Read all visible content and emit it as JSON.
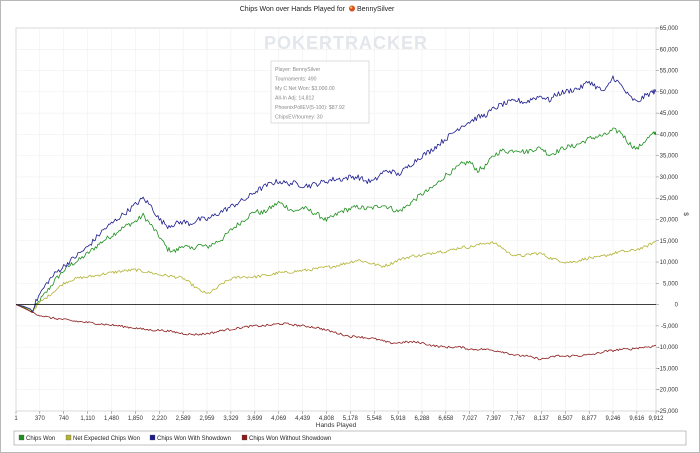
{
  "chart_data": {
    "type": "line",
    "title": "Chips Won over Hands Played for",
    "player_name": "BennySilver",
    "watermark": "POKERTRACKER",
    "watermark_parts": [
      "PO",
      "KERTRACKER"
    ],
    "xlabel": "Hands Played",
    "ylabel": "$",
    "xlim": [
      1,
      9912
    ],
    "ylim": [
      -25000,
      65000
    ],
    "x_ticks": [
      "1",
      "370",
      "740",
      "1,110",
      "1,480",
      "1,850",
      "2,220",
      "2,589",
      "2,959",
      "3,329",
      "3,699",
      "4,069",
      "4,439",
      "4,808",
      "5,178",
      "5,548",
      "5,918",
      "6,288",
      "6,658",
      "7,027",
      "7,397",
      "7,767",
      "8,137",
      "8,507",
      "8,877",
      "9,246",
      "9,616",
      "9,912"
    ],
    "x_tick_values": [
      1,
      370,
      740,
      1110,
      1480,
      1850,
      2220,
      2589,
      2959,
      3329,
      3699,
      4069,
      4439,
      4808,
      5178,
      5548,
      5918,
      6288,
      6658,
      7027,
      7397,
      7767,
      8137,
      8507,
      8877,
      9246,
      9616,
      9912
    ],
    "y_ticks": [
      "65,000",
      "60,000",
      "55,000",
      "50,000",
      "45,000",
      "40,000",
      "35,000",
      "30,000",
      "25,000",
      "20,000",
      "15,000",
      "10,000",
      "5,000",
      "0",
      "-5,000",
      "-10,000",
      "-15,000",
      "-20,000",
      "-25,000"
    ],
    "y_tick_values": [
      65000,
      60000,
      55000,
      50000,
      45000,
      40000,
      35000,
      30000,
      25000,
      20000,
      15000,
      10000,
      5000,
      0,
      -5000,
      -10000,
      -15000,
      -20000,
      -25000
    ],
    "grid": true,
    "legend_position": "bottom-left",
    "info_box": [
      "Player: BennySilver",
      "Tournaments: 490",
      "My C Net Won: $3,000.00",
      "All-In Adj: 14,812",
      "PhoenixPollEV(5-100): $87.92",
      "ChipsEV/tourney: 30"
    ],
    "series": [
      {
        "name": "Chips Won",
        "color": "#1f8f1f",
        "x": [
          1,
          120,
          250,
          370,
          500,
          620,
          740,
          860,
          980,
          1110,
          1230,
          1350,
          1480,
          1600,
          1730,
          1850,
          1970,
          2100,
          2220,
          2350,
          2470,
          2589,
          2700,
          2830,
          2959,
          3080,
          3200,
          3329,
          3450,
          3580,
          3699,
          3820,
          3950,
          4069,
          4190,
          4320,
          4439,
          4560,
          4690,
          4808,
          4930,
          5050,
          5178,
          5300,
          5420,
          5548,
          5670,
          5790,
          5918,
          6040,
          6160,
          6288,
          6410,
          6530,
          6658,
          6780,
          6900,
          7027,
          7150,
          7270,
          7397,
          7520,
          7640,
          7767,
          7890,
          8010,
          8137,
          8260,
          8380,
          8507,
          8630,
          8750,
          8877,
          9000,
          9120,
          9246,
          9370,
          9490,
          9616,
          9740,
          9860,
          9912
        ],
        "y": [
          0,
          -600,
          -1800,
          1000,
          3500,
          6000,
          8000,
          9500,
          10500,
          12000,
          13500,
          15000,
          16200,
          17500,
          18700,
          19500,
          21000,
          18500,
          16000,
          13000,
          12500,
          14000,
          13000,
          14000,
          13500,
          14500,
          15500,
          17500,
          19000,
          20500,
          22000,
          21500,
          22800,
          24000,
          23000,
          21800,
          22800,
          22000,
          21000,
          19800,
          20800,
          22000,
          22500,
          23000,
          22500,
          22800,
          23500,
          22800,
          21800,
          23000,
          24500,
          26000,
          27000,
          28500,
          30500,
          31500,
          33000,
          33500,
          31500,
          32500,
          35000,
          36200,
          36000,
          36500,
          35800,
          36500,
          36800,
          35200,
          36000,
          37000,
          37200,
          38000,
          39000,
          39500,
          39800,
          41000,
          40500,
          38000,
          36500,
          38500,
          40000,
          40500
        ]
      },
      {
        "name": "Net Expected Chips Won",
        "color": "#b3b336",
        "x": [
          1,
          120,
          250,
          370,
          500,
          620,
          740,
          860,
          980,
          1110,
          1230,
          1350,
          1480,
          1600,
          1730,
          1850,
          1970,
          2100,
          2220,
          2350,
          2470,
          2589,
          2700,
          2830,
          2959,
          3080,
          3200,
          3329,
          3450,
          3580,
          3699,
          3820,
          3950,
          4069,
          4190,
          4320,
          4439,
          4560,
          4690,
          4808,
          4930,
          5050,
          5178,
          5300,
          5420,
          5548,
          5670,
          5790,
          5918,
          6040,
          6160,
          6288,
          6410,
          6530,
          6658,
          6780,
          6900,
          7027,
          7150,
          7270,
          7397,
          7520,
          7640,
          7767,
          7890,
          8010,
          8137,
          8260,
          8380,
          8507,
          8630,
          8750,
          8877,
          9000,
          9120,
          9246,
          9370,
          9490,
          9616,
          9740,
          9860,
          9912
        ],
        "y": [
          0,
          -400,
          -1500,
          500,
          2000,
          3500,
          5000,
          5800,
          6300,
          6500,
          6800,
          7200,
          7500,
          7800,
          8000,
          8200,
          7800,
          7500,
          7000,
          6800,
          6500,
          6200,
          5000,
          3500,
          2500,
          3500,
          5000,
          6000,
          6500,
          6500,
          6500,
          6800,
          7000,
          7500,
          7500,
          7800,
          8000,
          8200,
          8500,
          8800,
          9000,
          9500,
          10000,
          10500,
          10000,
          9500,
          9000,
          9500,
          10500,
          11000,
          11500,
          11500,
          12000,
          12500,
          12500,
          13000,
          13500,
          13500,
          14000,
          14500,
          14500,
          13500,
          12000,
          11500,
          11500,
          12000,
          12000,
          11000,
          10500,
          10000,
          10000,
          10500,
          11000,
          11000,
          11500,
          12000,
          12500,
          12500,
          13000,
          13500,
          14500,
          15000
        ]
      },
      {
        "name": "Chips Won With Showdown",
        "color": "#1c1c8f",
        "x": [
          1,
          120,
          250,
          370,
          500,
          620,
          740,
          860,
          980,
          1110,
          1230,
          1350,
          1480,
          1600,
          1730,
          1850,
          1970,
          2100,
          2220,
          2350,
          2470,
          2589,
          2700,
          2830,
          2959,
          3080,
          3200,
          3329,
          3450,
          3580,
          3699,
          3820,
          3950,
          4069,
          4190,
          4320,
          4439,
          4560,
          4690,
          4808,
          4930,
          5050,
          5178,
          5300,
          5420,
          5548,
          5670,
          5790,
          5918,
          6040,
          6160,
          6288,
          6410,
          6530,
          6658,
          6780,
          6900,
          7027,
          7150,
          7270,
          7397,
          7520,
          7640,
          7767,
          7890,
          8010,
          8137,
          8260,
          8380,
          8507,
          8630,
          8750,
          8877,
          9000,
          9120,
          9246,
          9370,
          9490,
          9616,
          9740,
          9860,
          9912
        ],
        "y": [
          0,
          -400,
          -1200,
          2500,
          5500,
          7500,
          9000,
          10500,
          12000,
          13500,
          15500,
          17500,
          19000,
          20500,
          22000,
          23500,
          25000,
          23000,
          20000,
          18500,
          19000,
          19500,
          19000,
          20000,
          20000,
          21000,
          22000,
          23000,
          24000,
          25000,
          26500,
          27500,
          28500,
          29000,
          28500,
          28500,
          28000,
          28000,
          28500,
          29000,
          29500,
          29500,
          30000,
          30000,
          29000,
          29000,
          31000,
          31500,
          30500,
          32000,
          33500,
          35000,
          36000,
          37500,
          39000,
          40500,
          42000,
          43000,
          44000,
          44500,
          46000,
          47000,
          47500,
          48000,
          47500,
          48500,
          49000,
          48000,
          49500,
          50000,
          50500,
          51000,
          52500,
          51000,
          50000,
          53500,
          51500,
          49000,
          47500,
          49000,
          50000,
          50000
        ]
      },
      {
        "name": "Chips Won Without Showdown",
        "color": "#8b1a1a",
        "x": [
          1,
          120,
          250,
          370,
          500,
          620,
          740,
          860,
          980,
          1110,
          1230,
          1350,
          1480,
          1600,
          1730,
          1850,
          1970,
          2100,
          2220,
          2350,
          2470,
          2589,
          2700,
          2830,
          2959,
          3080,
          3200,
          3329,
          3450,
          3580,
          3699,
          3820,
          3950,
          4069,
          4190,
          4320,
          4439,
          4560,
          4690,
          4808,
          4930,
          5050,
          5178,
          5300,
          5420,
          5548,
          5670,
          5790,
          5918,
          6040,
          6160,
          6288,
          6410,
          6530,
          6658,
          6780,
          6900,
          7027,
          7150,
          7270,
          7397,
          7520,
          7640,
          7767,
          7890,
          8010,
          8137,
          8260,
          8380,
          8507,
          8630,
          8750,
          8877,
          9000,
          9120,
          9246,
          9370,
          9490,
          9616,
          9740,
          9860,
          9912
        ],
        "y": [
          0,
          -800,
          -1800,
          -2500,
          -3000,
          -3300,
          -3500,
          -3800,
          -4000,
          -4200,
          -4400,
          -4600,
          -4800,
          -5000,
          -5300,
          -5500,
          -5800,
          -6000,
          -6000,
          -6200,
          -6500,
          -6800,
          -7000,
          -7000,
          -6800,
          -6500,
          -6000,
          -5800,
          -5500,
          -5200,
          -5000,
          -5000,
          -4800,
          -4500,
          -4500,
          -4800,
          -5000,
          -5200,
          -5500,
          -6000,
          -6500,
          -7000,
          -7500,
          -7500,
          -7800,
          -8000,
          -8500,
          -9000,
          -9000,
          -8800,
          -8800,
          -9000,
          -9500,
          -9800,
          -10000,
          -10000,
          -10000,
          -10500,
          -10500,
          -10500,
          -10800,
          -11000,
          -11500,
          -12000,
          -12000,
          -12500,
          -12800,
          -12500,
          -12000,
          -12200,
          -12000,
          -12000,
          -11800,
          -11500,
          -11000,
          -10800,
          -10500,
          -10500,
          -10200,
          -10000,
          -9800,
          -9500
        ]
      }
    ]
  }
}
